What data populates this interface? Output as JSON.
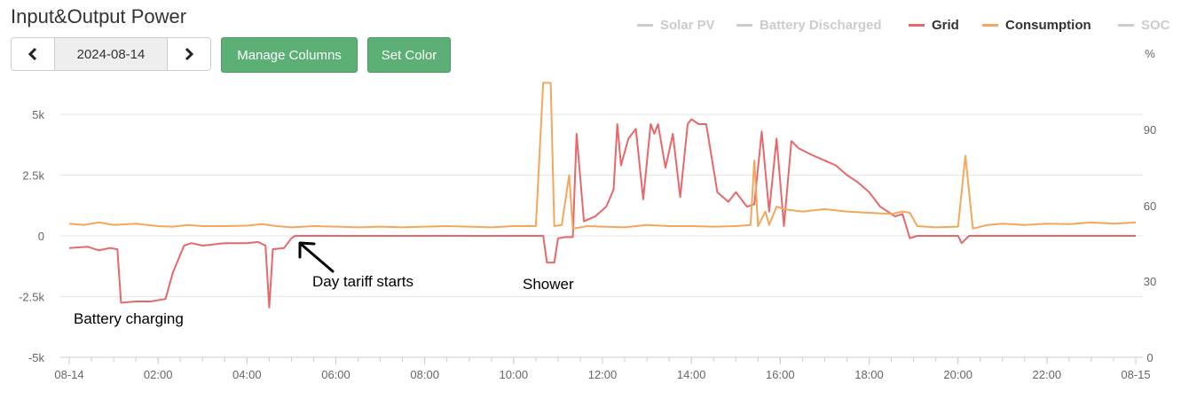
{
  "header": {
    "title": "Input&Output Power"
  },
  "date_nav": {
    "prev_icon": "chevron-left-icon",
    "date": "2024-08-14",
    "next_icon": "chevron-right-icon"
  },
  "buttons": {
    "manage_columns": "Manage Columns",
    "set_color": "Set Color"
  },
  "colors": {
    "grid": "#e8676b",
    "consumption": "#f5a65b",
    "inactive": "#cccccc",
    "button": "#5cb075",
    "annotation": "#000000"
  },
  "chart_data": {
    "type": "line",
    "title": "",
    "legend_position": "top-right",
    "legend": [
      {
        "name": "Solar PV",
        "active": false
      },
      {
        "name": "Battery Discharged",
        "active": false
      },
      {
        "name": "Grid",
        "active": true
      },
      {
        "name": "Consumption",
        "active": true
      },
      {
        "name": "SOC",
        "active": false
      }
    ],
    "x_ticks": [
      "08-14",
      "02:00",
      "04:00",
      "06:00",
      "08:00",
      "10:00",
      "12:00",
      "14:00",
      "16:00",
      "18:00",
      "20:00",
      "22:00",
      "08-15"
    ],
    "y_left": {
      "ticks": [
        "-5k",
        "-2.5k",
        "0",
        "2.5k",
        "5k"
      ],
      "ylim": [
        -5000,
        5000
      ]
    },
    "y_right": {
      "unit": "%",
      "ticks": [
        "0",
        "30",
        "60",
        "90"
      ],
      "ylim": [
        0,
        100
      ]
    },
    "grid": true,
    "series": [
      {
        "name": "Grid",
        "points": [
          [
            "00:00",
            -500
          ],
          [
            "00:25",
            -450
          ],
          [
            "00:40",
            -600
          ],
          [
            "00:55",
            -500
          ],
          [
            "01:05",
            -550
          ],
          [
            "01:10",
            -2750
          ],
          [
            "01:30",
            -2700
          ],
          [
            "01:50",
            -2700
          ],
          [
            "02:10",
            -2600
          ],
          [
            "02:20",
            -1500
          ],
          [
            "02:35",
            -400
          ],
          [
            "02:45",
            -300
          ],
          [
            "03:00",
            -400
          ],
          [
            "03:30",
            -300
          ],
          [
            "03:45",
            -300
          ],
          [
            "04:00",
            -300
          ],
          [
            "04:15",
            -250
          ],
          [
            "04:25",
            -400
          ],
          [
            "04:30",
            -2950
          ],
          [
            "04:35",
            -550
          ],
          [
            "04:50",
            -500
          ],
          [
            "05:00",
            -100
          ],
          [
            "05:05",
            0
          ],
          [
            "07:00",
            0
          ],
          [
            "09:00",
            0
          ],
          [
            "10:20",
            0
          ],
          [
            "10:40",
            0
          ],
          [
            "10:45",
            -1100
          ],
          [
            "10:55",
            -1100
          ],
          [
            "11:00",
            -100
          ],
          [
            "11:10",
            -50
          ],
          [
            "11:20",
            -50
          ],
          [
            "11:25",
            4200
          ],
          [
            "11:35",
            600
          ],
          [
            "11:50",
            800
          ],
          [
            "12:05",
            1200
          ],
          [
            "12:15",
            1900
          ],
          [
            "12:20",
            4600
          ],
          [
            "12:25",
            2900
          ],
          [
            "12:35",
            4000
          ],
          [
            "12:45",
            4400
          ],
          [
            "12:55",
            1500
          ],
          [
            "13:05",
            4600
          ],
          [
            "13:10",
            4200
          ],
          [
            "13:15",
            4600
          ],
          [
            "13:25",
            2800
          ],
          [
            "13:35",
            4200
          ],
          [
            "13:45",
            1600
          ],
          [
            "13:55",
            4600
          ],
          [
            "14:00",
            4800
          ],
          [
            "14:10",
            4600
          ],
          [
            "14:20",
            4600
          ],
          [
            "14:35",
            1800
          ],
          [
            "14:50",
            1400
          ],
          [
            "15:00",
            1800
          ],
          [
            "15:15",
            1200
          ],
          [
            "15:25",
            1300
          ],
          [
            "15:35",
            4300
          ],
          [
            "15:45",
            1000
          ],
          [
            "15:55",
            4000
          ],
          [
            "16:05",
            400
          ],
          [
            "16:15",
            3900
          ],
          [
            "16:25",
            3600
          ],
          [
            "16:45",
            3300
          ],
          [
            "17:00",
            3100
          ],
          [
            "17:15",
            2900
          ],
          [
            "17:30",
            2500
          ],
          [
            "17:45",
            2200
          ],
          [
            "18:00",
            1800
          ],
          [
            "18:15",
            1200
          ],
          [
            "18:35",
            800
          ],
          [
            "18:45",
            900
          ],
          [
            "18:55",
            -100
          ],
          [
            "19:05",
            0
          ],
          [
            "19:30",
            0
          ],
          [
            "20:00",
            0
          ],
          [
            "20:05",
            -300
          ],
          [
            "20:15",
            0
          ],
          [
            "22:00",
            0
          ],
          [
            "24:00",
            0
          ]
        ]
      },
      {
        "name": "Consumption",
        "points": [
          [
            "00:00",
            500
          ],
          [
            "00:20",
            450
          ],
          [
            "00:40",
            550
          ],
          [
            "01:00",
            450
          ],
          [
            "01:30",
            500
          ],
          [
            "02:00",
            400
          ],
          [
            "02:20",
            380
          ],
          [
            "02:40",
            450
          ],
          [
            "03:00",
            400
          ],
          [
            "03:30",
            400
          ],
          [
            "04:00",
            420
          ],
          [
            "04:20",
            480
          ],
          [
            "04:40",
            400
          ],
          [
            "05:00",
            350
          ],
          [
            "05:30",
            400
          ],
          [
            "06:00",
            380
          ],
          [
            "06:30",
            350
          ],
          [
            "07:00",
            380
          ],
          [
            "07:30",
            350
          ],
          [
            "08:00",
            380
          ],
          [
            "08:30",
            400
          ],
          [
            "09:00",
            380
          ],
          [
            "09:30",
            350
          ],
          [
            "10:00",
            400
          ],
          [
            "10:30",
            400
          ],
          [
            "10:40",
            6300
          ],
          [
            "10:50",
            6300
          ],
          [
            "10:55",
            400
          ],
          [
            "11:05",
            450
          ],
          [
            "11:15",
            2500
          ],
          [
            "11:20",
            300
          ],
          [
            "11:40",
            400
          ],
          [
            "12:00",
            380
          ],
          [
            "12:30",
            350
          ],
          [
            "13:00",
            450
          ],
          [
            "13:30",
            400
          ],
          [
            "14:00",
            400
          ],
          [
            "14:30",
            380
          ],
          [
            "15:00",
            400
          ],
          [
            "15:20",
            450
          ],
          [
            "15:25",
            3100
          ],
          [
            "15:30",
            400
          ],
          [
            "15:40",
            1000
          ],
          [
            "15:45",
            450
          ],
          [
            "15:55",
            1200
          ],
          [
            "16:05",
            1100
          ],
          [
            "16:30",
            1000
          ],
          [
            "17:00",
            1100
          ],
          [
            "17:30",
            1000
          ],
          [
            "18:00",
            950
          ],
          [
            "18:30",
            900
          ],
          [
            "18:45",
            1000
          ],
          [
            "18:55",
            950
          ],
          [
            "19:05",
            400
          ],
          [
            "19:30",
            350
          ],
          [
            "20:00",
            380
          ],
          [
            "20:10",
            3300
          ],
          [
            "20:20",
            300
          ],
          [
            "20:40",
            450
          ],
          [
            "21:00",
            500
          ],
          [
            "21:30",
            450
          ],
          [
            "22:00",
            500
          ],
          [
            "22:30",
            480
          ],
          [
            "23:00",
            550
          ],
          [
            "23:30",
            500
          ],
          [
            "24:00",
            550
          ]
        ]
      }
    ],
    "annotations": [
      "Battery charging",
      "Day tariff starts",
      "Shower"
    ]
  }
}
